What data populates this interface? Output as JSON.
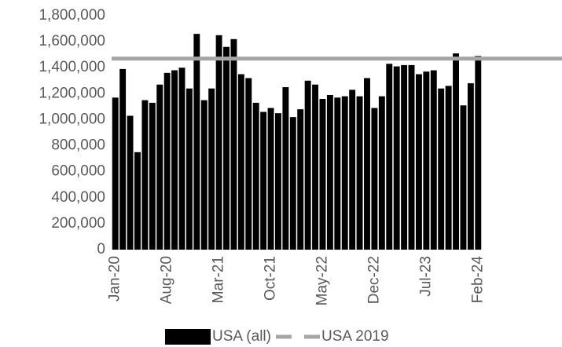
{
  "chart_data": {
    "type": "bar",
    "categories": [
      "Jan-20",
      null,
      null,
      null,
      null,
      null,
      null,
      "Aug-20",
      null,
      null,
      null,
      null,
      null,
      null,
      "Mar-21",
      null,
      null,
      null,
      null,
      null,
      null,
      "Oct-21",
      null,
      null,
      null,
      null,
      null,
      null,
      "May-22",
      null,
      null,
      null,
      null,
      null,
      null,
      "Dec-22",
      null,
      null,
      null,
      null,
      null,
      null,
      "Jul-23",
      null,
      null,
      null,
      null,
      null,
      null,
      "Feb-24"
    ],
    "series": [
      {
        "name": "USA (all)",
        "type": "bar",
        "color": "#000000",
        "values": [
          1170000,
          1390000,
          1030000,
          750000,
          1150000,
          1130000,
          1270000,
          1360000,
          1380000,
          1400000,
          1240000,
          1660000,
          1150000,
          1240000,
          1650000,
          1560000,
          1620000,
          1350000,
          1320000,
          1130000,
          1060000,
          1090000,
          1050000,
          1250000,
          1020000,
          1080000,
          1300000,
          1270000,
          1160000,
          1190000,
          1170000,
          1180000,
          1230000,
          1180000,
          1320000,
          1090000,
          1180000,
          1430000,
          1410000,
          1420000,
          1420000,
          1350000,
          1370000,
          1380000,
          1240000,
          1260000,
          1510000,
          1110000,
          1280000,
          1490000
        ]
      },
      {
        "name": "USA 2019",
        "type": "line",
        "color": "#a6a6a6",
        "values": [
          1470000,
          1470000,
          1470000,
          1470000,
          1470000,
          1470000,
          1470000,
          1470000,
          1470000,
          1470000,
          1470000,
          1470000,
          1470000,
          1470000,
          1470000,
          1470000,
          1470000,
          1470000,
          1470000,
          1470000,
          1470000,
          1470000,
          1470000,
          1470000,
          1470000,
          1470000,
          1470000,
          1470000,
          1470000,
          1470000,
          1470000,
          1470000,
          1470000,
          1470000,
          1470000,
          1470000,
          1470000,
          1470000,
          1470000,
          1470000,
          1470000,
          1470000,
          1470000,
          1470000,
          1470000,
          1470000,
          1470000,
          1470000,
          1470000,
          1470000
        ]
      }
    ],
    "ylim": [
      0,
      1800000
    ],
    "yticks": [
      0,
      {
        "value": 200000,
        "label": "200,000"
      },
      {
        "value": 400000,
        "label": "400,000"
      },
      {
        "value": 600000,
        "label": "600,000"
      },
      {
        "value": 800000,
        "label": "800,000"
      },
      {
        "value": 1000000,
        "label": "1,000,000"
      },
      {
        "value": 1200000,
        "label": "1,200,000"
      },
      {
        "value": 1400000,
        "label": "1,400,000"
      },
      {
        "value": 1600000,
        "label": "1,600,000"
      },
      {
        "value": 1800000,
        "label": "1,800,000"
      }
    ],
    "grid": false
  }
}
